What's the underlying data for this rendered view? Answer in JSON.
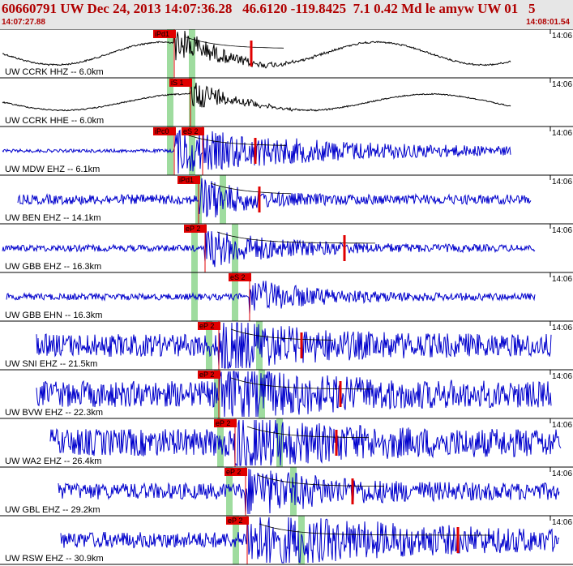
{
  "header": {
    "title": "60660791 UW Dec 24, 2013 14:07:36.28   46.6120 -119.8425  7.1 0.42 Md le amyw UW 01   5",
    "start_time": "14:07:27.88",
    "end_time": "14:08:01.54"
  },
  "colors": {
    "header_bg": "#e6e6e6",
    "header_text": "#b00000",
    "hh_trace": "#000000",
    "eh_trace": "#0000cc",
    "pick": "#e00000",
    "window": "#9fdc9f"
  },
  "traces": [
    {
      "label": "UW CCRK HHZ -- 6.0km",
      "picks": [
        "iPd1"
      ],
      "tick": "14:06",
      "channel_type": "HH"
    },
    {
      "label": "UW CCRK HHE -- 6.0km",
      "picks": [
        "iS 1"
      ],
      "tick": "14:06",
      "channel_type": "HH"
    },
    {
      "label": "UW MDW EHZ -- 6.1km",
      "picks": [
        "iPc0",
        "eS 2"
      ],
      "tick": "14:06",
      "channel_type": "EH"
    },
    {
      "label": "UW BEN EHZ -- 14.1km",
      "picks": [
        "iPd1"
      ],
      "tick": "14:06",
      "channel_type": "EH"
    },
    {
      "label": "UW GBB EHZ -- 16.3km",
      "picks": [
        "eP 2"
      ],
      "tick": "14:06",
      "channel_type": "EH"
    },
    {
      "label": "UW GBB EHN -- 16.3km",
      "picks": [
        "eS 2"
      ],
      "tick": "14:06",
      "channel_type": "EH"
    },
    {
      "label": "UW SNI EHZ -- 21.5km",
      "picks": [
        "eP 2"
      ],
      "tick": "14:06",
      "channel_type": "EH"
    },
    {
      "label": "UW BVW EHZ -- 22.3km",
      "picks": [
        "eP 2"
      ],
      "tick": "14:06",
      "channel_type": "EH"
    },
    {
      "label": "UW WA2 EHZ -- 26.4km",
      "picks": [
        "eP 2"
      ],
      "tick": "14:06",
      "channel_type": "EH"
    },
    {
      "label": "UW GBL EHZ -- 29.2km",
      "picks": [
        "eP 2"
      ],
      "tick": "14:06",
      "channel_type": "EH"
    },
    {
      "label": "UW RSW EHZ -- 30.9km",
      "picks": [
        "eP 2"
      ],
      "tick": "14:06",
      "channel_type": "EH"
    }
  ]
}
